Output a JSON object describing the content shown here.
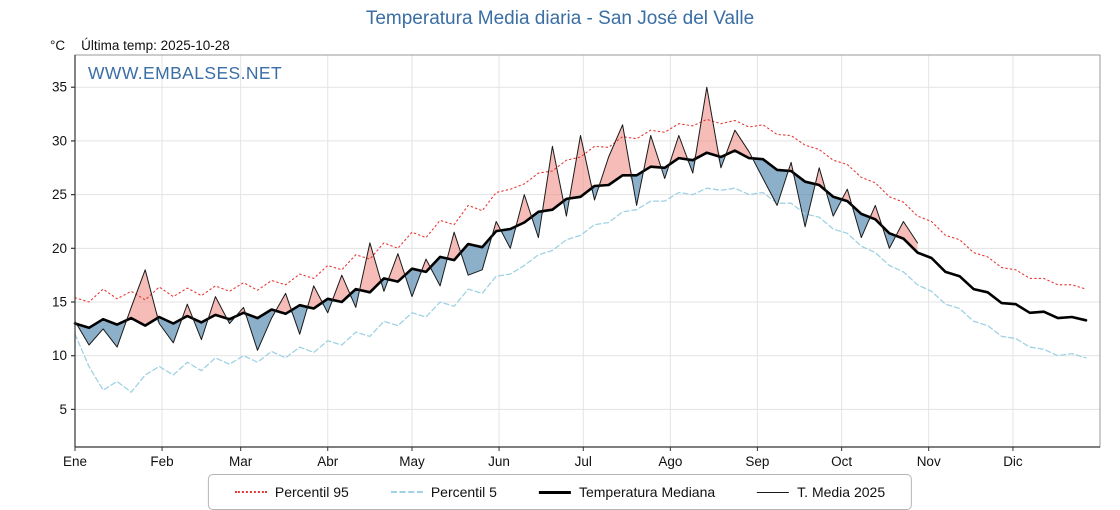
{
  "title": "Temperatura Media diaria - San José del Valle",
  "header": {
    "unit": "°C",
    "last_temp": "Última temp: 2025-10-28"
  },
  "watermark": "WWW.EMBALSES.NET",
  "colors": {
    "title": "#3a6ea5",
    "watermark": "#3a6ea5",
    "p95": "#e53935",
    "p5": "#a0d2e4",
    "median": "#000000",
    "t2025": "#1a1a1a",
    "fill_above": "#ef8f88",
    "fill_below": "#4f84ad",
    "grid": "#e3e3e3",
    "axis": "#333333"
  },
  "legend": [
    {
      "key": "p95",
      "label": "Percentil 95",
      "style": "dotted"
    },
    {
      "key": "p5",
      "label": "Percentil 5",
      "style": "dashed"
    },
    {
      "key": "median",
      "label": "Temperatura Mediana",
      "style": "solid-thick"
    },
    {
      "key": "t2025",
      "label": "T. Media 2025",
      "style": "solid-thin"
    }
  ],
  "chart_data": {
    "type": "line",
    "title": "Temperatura Media diaria - San José del Valle",
    "xlabel": "",
    "ylabel": "°C",
    "x_unit": "day_of_year",
    "xlim": [
      0,
      365
    ],
    "ylim": [
      1.5,
      38
    ],
    "yticks": [
      5,
      10,
      15,
      20,
      25,
      30,
      35
    ],
    "months": [
      "Ene",
      "Feb",
      "Mar",
      "Abr",
      "May",
      "Jun",
      "Jul",
      "Ago",
      "Sep",
      "Oct",
      "Nov",
      "Dic"
    ],
    "month_start_days": [
      0,
      31,
      59,
      90,
      120,
      151,
      181,
      212,
      243,
      273,
      304,
      334
    ],
    "grid": true,
    "legend_position": "bottom",
    "x_days": [
      0,
      5,
      10,
      15,
      20,
      25,
      30,
      35,
      40,
      45,
      50,
      55,
      60,
      65,
      70,
      75,
      80,
      85,
      90,
      95,
      100,
      105,
      110,
      115,
      120,
      125,
      130,
      135,
      140,
      145,
      150,
      155,
      160,
      165,
      170,
      175,
      180,
      185,
      190,
      195,
      200,
      205,
      210,
      215,
      220,
      225,
      230,
      235,
      240,
      245,
      250,
      255,
      260,
      265,
      270,
      275,
      280,
      285,
      290,
      295,
      300,
      305,
      310,
      315,
      320,
      325,
      330,
      335,
      340,
      345,
      350,
      355,
      360
    ],
    "series": [
      {
        "name": "Percentil 95",
        "key": "p95",
        "values": [
          15.4,
          15.0,
          16.2,
          15.3,
          16.0,
          15.2,
          16.4,
          15.5,
          16.3,
          15.6,
          16.5,
          16.0,
          16.8,
          16.1,
          17.0,
          16.6,
          17.6,
          17.2,
          18.4,
          18.0,
          19.4,
          19.0,
          20.5,
          20.0,
          21.5,
          21.0,
          22.6,
          22.2,
          24.0,
          23.5,
          25.2,
          25.5,
          26.0,
          27.0,
          27.2,
          28.2,
          28.5,
          29.5,
          29.4,
          30.4,
          30.2,
          31.0,
          30.8,
          31.6,
          31.4,
          32.0,
          31.6,
          31.9,
          31.3,
          31.5,
          30.6,
          30.5,
          29.6,
          29.2,
          28.2,
          27.8,
          26.6,
          26.1,
          24.8,
          24.3,
          23.0,
          22.5,
          21.2,
          20.8,
          19.6,
          19.2,
          18.2,
          18.0,
          17.2,
          17.2,
          16.6,
          16.6,
          16.2
        ]
      },
      {
        "name": "Percentil 5",
        "key": "p5",
        "values": [
          12.0,
          9.0,
          6.8,
          7.6,
          6.6,
          8.2,
          9.0,
          8.2,
          9.4,
          8.6,
          9.8,
          9.2,
          10.0,
          9.4,
          10.4,
          9.8,
          10.8,
          10.3,
          11.4,
          11.0,
          12.2,
          11.8,
          13.2,
          12.8,
          14.0,
          13.6,
          15.0,
          14.6,
          16.2,
          15.8,
          17.4,
          17.6,
          18.4,
          19.4,
          19.8,
          20.8,
          21.2,
          22.2,
          22.4,
          23.4,
          23.6,
          24.4,
          24.4,
          25.2,
          25.0,
          25.6,
          25.4,
          25.6,
          25.0,
          25.2,
          24.2,
          24.2,
          23.2,
          22.9,
          21.8,
          21.4,
          20.2,
          19.6,
          18.4,
          17.8,
          16.6,
          16.0,
          14.8,
          14.4,
          13.2,
          12.8,
          11.8,
          11.6,
          10.8,
          10.6,
          10.0,
          10.2,
          9.8
        ]
      },
      {
        "name": "Temperatura Mediana",
        "key": "median",
        "values": [
          13.0,
          12.6,
          13.4,
          12.9,
          13.5,
          12.8,
          13.6,
          13.0,
          13.7,
          13.1,
          13.8,
          13.4,
          14.0,
          13.5,
          14.3,
          13.9,
          14.7,
          14.4,
          15.3,
          15.0,
          16.2,
          15.9,
          17.2,
          16.9,
          18.1,
          17.8,
          19.2,
          18.9,
          20.4,
          20.1,
          21.6,
          21.8,
          22.4,
          23.4,
          23.6,
          24.6,
          24.8,
          25.8,
          25.9,
          26.8,
          26.8,
          27.6,
          27.5,
          28.4,
          28.2,
          28.9,
          28.5,
          29.1,
          28.4,
          28.3,
          27.3,
          27.2,
          26.2,
          25.9,
          24.8,
          24.4,
          23.2,
          22.7,
          21.4,
          20.9,
          19.6,
          19.1,
          17.8,
          17.4,
          16.2,
          15.9,
          14.9,
          14.8,
          14.0,
          14.1,
          13.5,
          13.6,
          13.3
        ]
      },
      {
        "name": "T. Media 2025",
        "key": "t2025",
        "values": [
          13.2,
          11.0,
          12.5,
          10.8,
          14.5,
          18.0,
          13.0,
          11.2,
          14.8,
          11.5,
          15.5,
          13.0,
          14.5,
          10.5,
          13.5,
          15.8,
          12.0,
          16.5,
          14.0,
          17.5,
          14.5,
          20.5,
          16.0,
          19.5,
          15.5,
          19.0,
          16.5,
          21.5,
          17.5,
          18.0,
          22.5,
          20.0,
          25.0,
          21.0,
          29.5,
          23.0,
          30.5,
          24.5,
          28.5,
          31.5,
          24.0,
          30.5,
          26.5,
          30.5,
          27.0,
          35.0,
          27.5,
          31.0,
          29.0,
          26.5,
          24.0,
          28.0,
          22.0,
          27.5,
          23.0,
          25.5,
          21.0,
          24.0,
          20.0,
          22.5,
          20.5
        ]
      }
    ]
  }
}
